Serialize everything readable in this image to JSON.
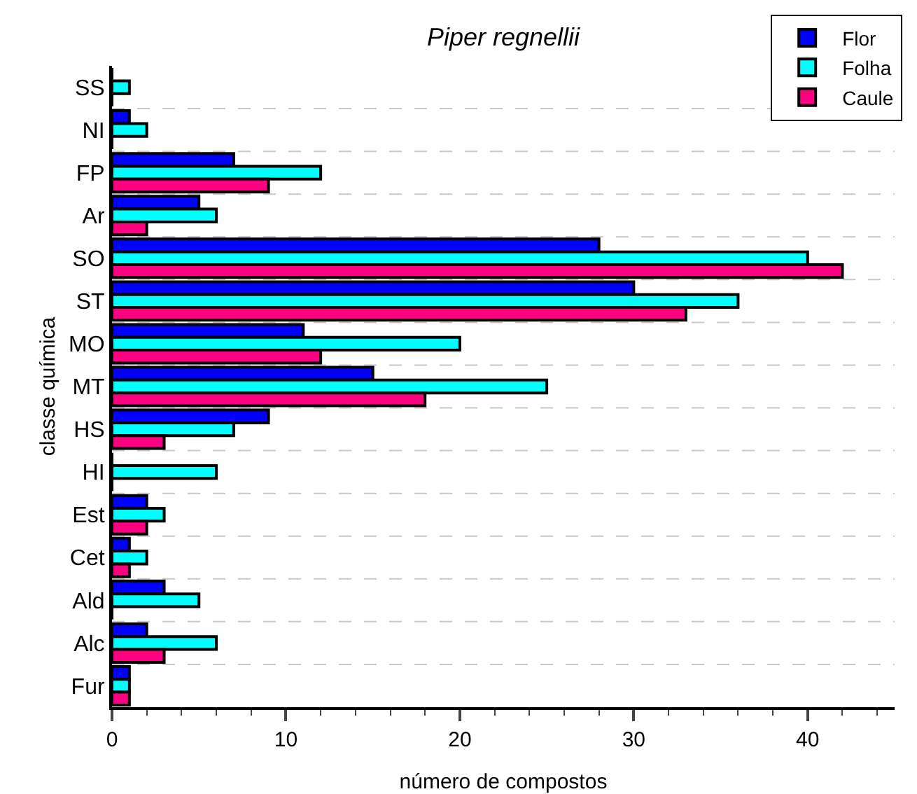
{
  "chart_data": {
    "type": "bar",
    "orientation": "horizontal",
    "title": "Piper regnellii",
    "xlabel": "número de compostos",
    "ylabel": "classe química",
    "categories": [
      "SS",
      "NI",
      "FP",
      "Ar",
      "SO",
      "ST",
      "MO",
      "MT",
      "HS",
      "HI",
      "Est",
      "Cet",
      "Ald",
      "Alc",
      "Fur"
    ],
    "series": [
      {
        "name": "Flor",
        "color": "#0000ff",
        "values": [
          0,
          1,
          7,
          5,
          28,
          30,
          11,
          15,
          9,
          0,
          2,
          1,
          3,
          2,
          1
        ]
      },
      {
        "name": "Folha",
        "color": "#00ffff",
        "values": [
          1,
          2,
          12,
          6,
          40,
          36,
          20,
          25,
          7,
          6,
          3,
          2,
          5,
          6,
          1
        ]
      },
      {
        "name": "Caule",
        "color": "#ff0080",
        "values": [
          0,
          0,
          9,
          2,
          42,
          33,
          12,
          18,
          3,
          0,
          2,
          1,
          0,
          3,
          1
        ]
      }
    ],
    "xlim": [
      0,
      45
    ],
    "xticks": [
      0,
      10,
      20,
      30,
      40
    ],
    "grid": "y",
    "legend": "top right"
  }
}
